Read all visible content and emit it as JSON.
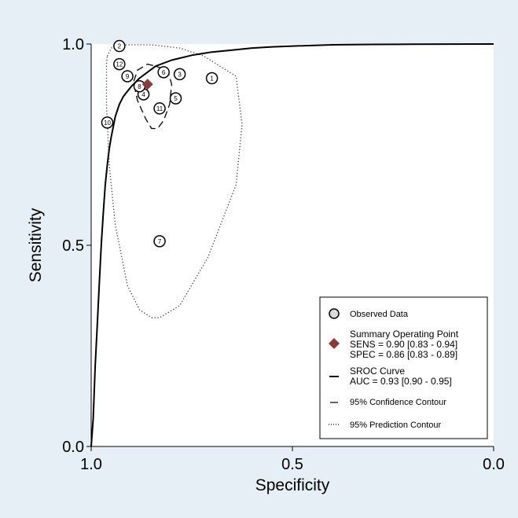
{
  "chart_data": {
    "type": "scatter",
    "xlabel": "Specificity",
    "ylabel": "Sensitivity",
    "x_reversed": true,
    "xlim": [
      1.0,
      0.0
    ],
    "ylim": [
      0.0,
      1.0
    ],
    "x_ticks": [
      "1.0",
      "0.5",
      "0.0"
    ],
    "x_tick_values": [
      1.0,
      0.5,
      0.0
    ],
    "y_ticks": [
      "0.0",
      "0.5",
      "1.0"
    ],
    "y_tick_values": [
      0.0,
      0.5,
      1.0
    ],
    "grid": false,
    "legend_position": "bottom-right",
    "observed_data": [
      {
        "label": "1",
        "specificity": 0.7,
        "sensitivity": 0.915
      },
      {
        "label": "2",
        "specificity": 0.93,
        "sensitivity": 0.995
      },
      {
        "label": "3",
        "specificity": 0.78,
        "sensitivity": 0.925
      },
      {
        "label": "4",
        "specificity": 0.87,
        "sensitivity": 0.875
      },
      {
        "label": "5",
        "specificity": 0.79,
        "sensitivity": 0.865
      },
      {
        "label": "6",
        "specificity": 0.82,
        "sensitivity": 0.93
      },
      {
        "label": "7",
        "specificity": 0.83,
        "sensitivity": 0.51
      },
      {
        "label": "8",
        "specificity": 0.88,
        "sensitivity": 0.895
      },
      {
        "label": "9",
        "specificity": 0.91,
        "sensitivity": 0.92
      },
      {
        "label": "10",
        "specificity": 0.96,
        "sensitivity": 0.805
      },
      {
        "label": "11",
        "specificity": 0.83,
        "sensitivity": 0.84
      },
      {
        "label": "12",
        "specificity": 0.93,
        "sensitivity": 0.95
      }
    ],
    "summary_point": {
      "specificity": 0.86,
      "sensitivity": 0.9,
      "color": "#8b3a3a"
    },
    "sroc_curve": [
      [
        1.0,
        0.0
      ],
      [
        0.995,
        0.07
      ],
      [
        0.99,
        0.2
      ],
      [
        0.985,
        0.3
      ],
      [
        0.98,
        0.4
      ],
      [
        0.975,
        0.5
      ],
      [
        0.97,
        0.58
      ],
      [
        0.965,
        0.65
      ],
      [
        0.96,
        0.7
      ],
      [
        0.955,
        0.74
      ],
      [
        0.95,
        0.77
      ],
      [
        0.94,
        0.82
      ],
      [
        0.93,
        0.85
      ],
      [
        0.92,
        0.87
      ],
      [
        0.9,
        0.895
      ],
      [
        0.88,
        0.915
      ],
      [
        0.86,
        0.93
      ],
      [
        0.84,
        0.945
      ],
      [
        0.8,
        0.96
      ],
      [
        0.75,
        0.972
      ],
      [
        0.7,
        0.98
      ],
      [
        0.65,
        0.985
      ],
      [
        0.6,
        0.99
      ],
      [
        0.55,
        0.993
      ],
      [
        0.5,
        0.995
      ],
      [
        0.4,
        0.998
      ],
      [
        0.3,
        0.999
      ],
      [
        0.2,
        0.9995
      ],
      [
        0.0,
        1.0
      ]
    ],
    "confidence_contour": [
      [
        0.84,
        0.945
      ],
      [
        0.81,
        0.935
      ],
      [
        0.8,
        0.9
      ],
      [
        0.805,
        0.85
      ],
      [
        0.82,
        0.81
      ],
      [
        0.835,
        0.79
      ],
      [
        0.85,
        0.79
      ],
      [
        0.865,
        0.815
      ],
      [
        0.885,
        0.86
      ],
      [
        0.895,
        0.905
      ],
      [
        0.885,
        0.935
      ],
      [
        0.86,
        0.95
      ],
      [
        0.84,
        0.945
      ]
    ],
    "prediction_contour": [
      [
        0.96,
        0.97
      ],
      [
        0.95,
        0.99
      ],
      [
        0.93,
        0.998
      ],
      [
        0.85,
        0.998
      ],
      [
        0.78,
        0.99
      ],
      [
        0.72,
        0.97
      ],
      [
        0.64,
        0.92
      ],
      [
        0.625,
        0.8
      ],
      [
        0.64,
        0.65
      ],
      [
        0.71,
        0.47
      ],
      [
        0.78,
        0.35
      ],
      [
        0.83,
        0.32
      ],
      [
        0.85,
        0.32
      ],
      [
        0.88,
        0.34
      ],
      [
        0.91,
        0.4
      ],
      [
        0.94,
        0.55
      ],
      [
        0.955,
        0.7
      ],
      [
        0.962,
        0.85
      ],
      [
        0.962,
        0.95
      ],
      [
        0.96,
        0.97
      ]
    ],
    "legend": {
      "observed": "Observed Data",
      "summary_title": "Summary Operating Point",
      "summary_sens": "SENS = 0.90 [0.83 - 0.94]",
      "summary_spec": "SPEC = 0.86 [0.83 - 0.89]",
      "sroc_title": "SROC Curve",
      "sroc_auc": "AUC = 0.93 [0.90 - 0.95]",
      "confidence": "95% Confidence Contour",
      "prediction": "95% Prediction Contour"
    }
  }
}
